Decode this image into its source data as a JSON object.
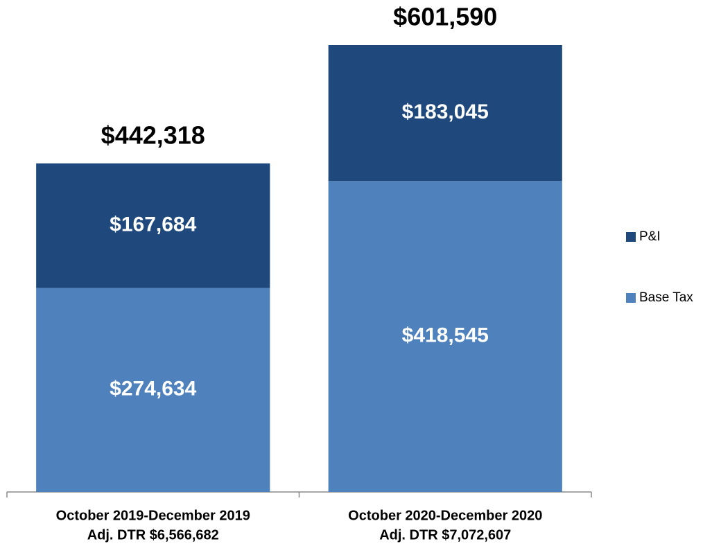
{
  "chart_data": {
    "type": "bar",
    "stacked": true,
    "categories": [
      [
        "October 2019-December 2019",
        "Adj. DTR $6,566,682"
      ],
      [
        "October 2020-December 2020",
        "Adj. DTR $7,072,607"
      ]
    ],
    "series": [
      {
        "name": "Base Tax",
        "color": "#4f81bd",
        "values": [
          274634,
          418545
        ],
        "value_labels": [
          "$274,634",
          "$418,545"
        ]
      },
      {
        "name": "P&I",
        "color": "#1f497d",
        "values": [
          167684,
          183045
        ],
        "value_labels": [
          "$167,684",
          "$183,045"
        ]
      }
    ],
    "totals": [
      442318,
      601590
    ],
    "total_labels": [
      "$442,318",
      "$601,590"
    ],
    "legend": "right"
  }
}
